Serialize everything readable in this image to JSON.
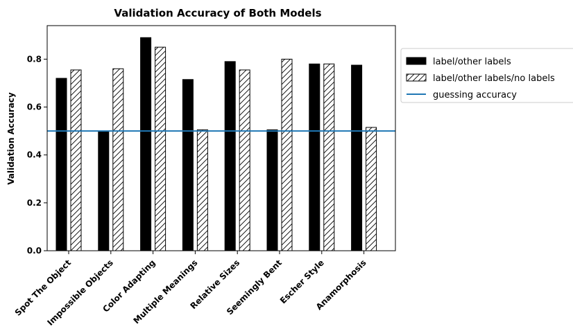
{
  "chart_data": {
    "type": "bar",
    "title": "Validation Accuracy of Both Models",
    "xlabel": "",
    "ylabel": "Validation Accuracy",
    "ylim": [
      0,
      0.94
    ],
    "yticks": [
      0.0,
      0.2,
      0.4,
      0.6,
      0.8
    ],
    "ytick_labels": [
      "0.0",
      "0.2",
      "0.4",
      "0.6",
      "0.8"
    ],
    "categories": [
      "Spot The Object",
      "Impossible Objects",
      "Color Adapting",
      "Multiple Meanings",
      "Relative Sizes",
      "Seemingly Bent",
      "Escher Style",
      "Anamorphosis"
    ],
    "series": [
      {
        "name": "label/other labels",
        "style": "solid",
        "color": "#000000",
        "values": [
          0.72,
          0.5,
          0.89,
          0.715,
          0.79,
          0.505,
          0.78,
          0.775
        ]
      },
      {
        "name": "label/other labels/no labels",
        "style": "hatched",
        "color": "#ffffff",
        "values": [
          0.755,
          0.76,
          0.85,
          0.505,
          0.755,
          0.8,
          0.78,
          0.515
        ]
      }
    ],
    "reference_line": {
      "name": "guessing accuracy",
      "value": 0.5,
      "color": "#1f77b4"
    },
    "legend_position": "right, outside plot",
    "grid": false
  }
}
